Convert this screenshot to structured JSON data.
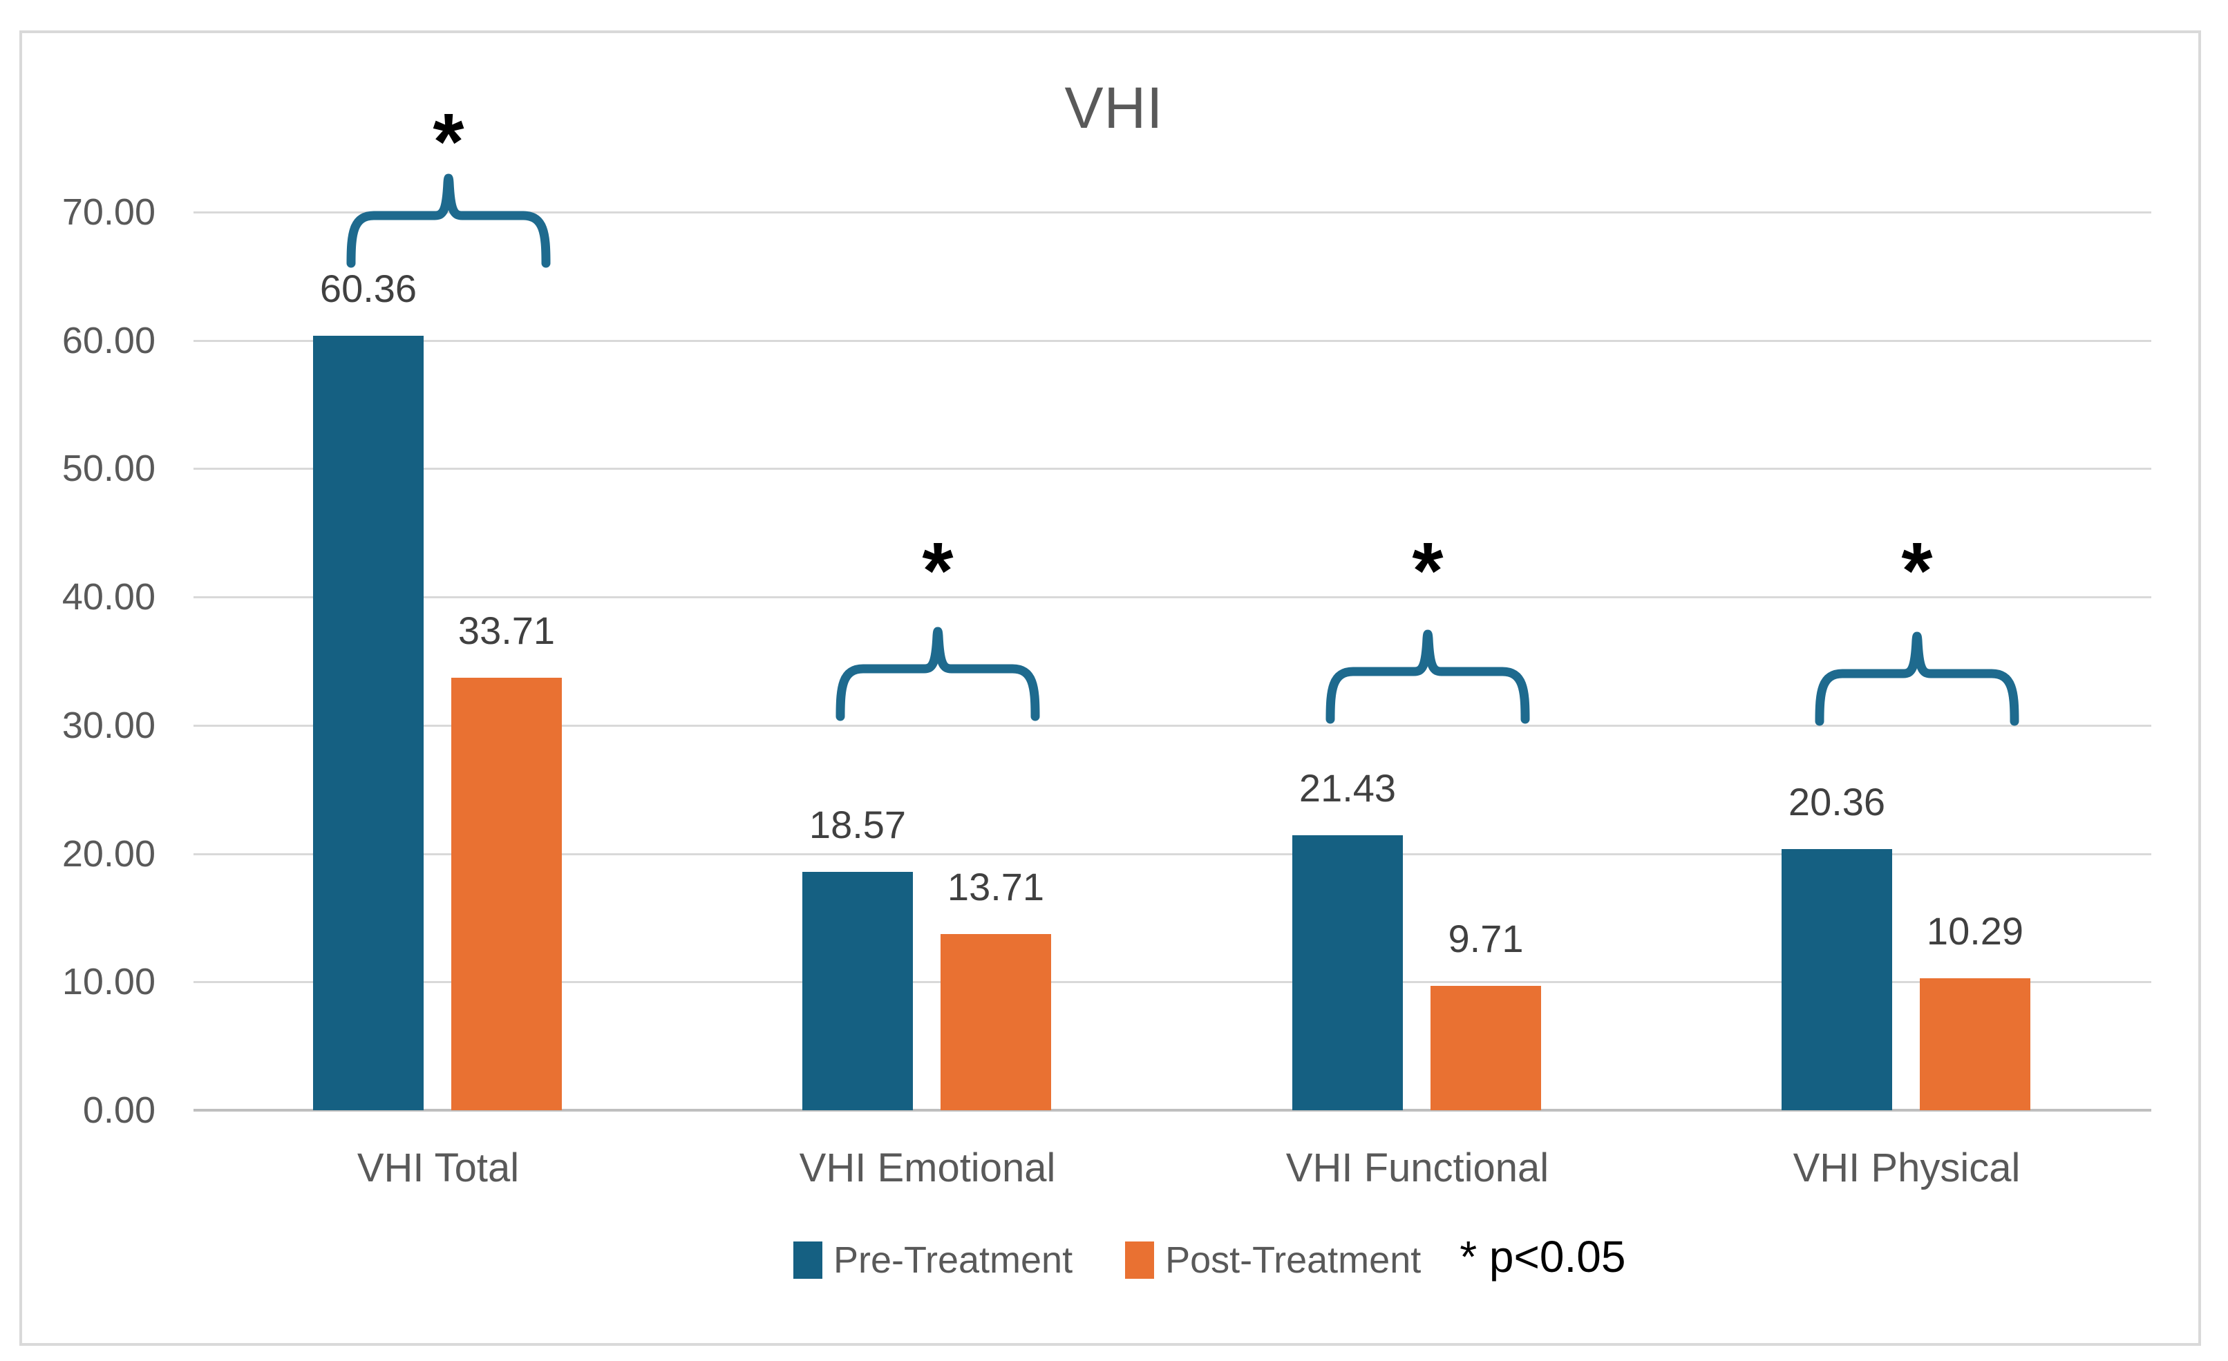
{
  "chart_data": {
    "type": "bar",
    "title": "VHI",
    "categories": [
      "VHI Total",
      "VHI Emotional",
      "VHI Functional",
      "VHI Physical"
    ],
    "series": [
      {
        "name": "Pre-Treatment",
        "color": "#156082",
        "values": [
          60.36,
          18.57,
          21.43,
          20.36
        ],
        "data_labels": [
          "60.36",
          "18.57",
          "21.43",
          "20.36"
        ]
      },
      {
        "name": "Post-Treatment",
        "color": "#E97132",
        "values": [
          33.71,
          13.71,
          9.71,
          10.29
        ],
        "data_labels": [
          "33.71",
          "13.71",
          "9.71",
          "10.29"
        ]
      }
    ],
    "y_axis": {
      "min": 0,
      "max": 70,
      "step": 10,
      "tick_labels": [
        "0.00",
        "10.00",
        "20.00",
        "30.00",
        "40.00",
        "50.00",
        "60.00",
        "70.00"
      ]
    },
    "grid": true,
    "legend_position": "bottom",
    "significance": {
      "marker": "*",
      "note": "* p<0.05",
      "significant_pairs": [
        "VHI Total",
        "VHI Emotional",
        "VHI Functional",
        "VHI Physical"
      ]
    }
  },
  "title": "VHI",
  "legend": {
    "pre_label": "Pre-Treatment",
    "post_label": "Post-Treatment",
    "p_note": "* p<0.05"
  },
  "colors": {
    "pre": "#156082",
    "post": "#E97132",
    "brace": "#1E6A8E",
    "gridline": "#D9D9D9",
    "axis_line": "#BFBFBF",
    "text_gray": "#595959",
    "data_label": "#404040",
    "black": "#000000",
    "border": "#D9D9D9"
  },
  "asterisk": "*"
}
